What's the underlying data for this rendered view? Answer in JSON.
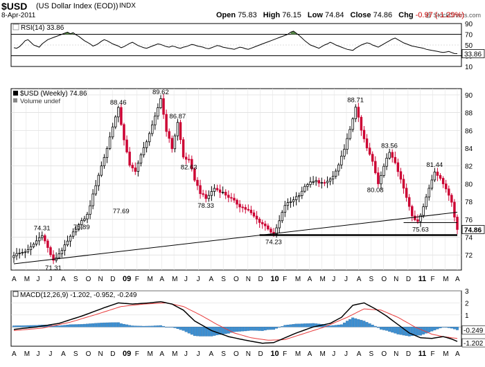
{
  "header": {
    "symbol": "$USD",
    "name": "(US Dollar Index (EOD))",
    "exchange": "INDX",
    "date": "8-Apr-2011",
    "brand": "@ StockCharts.com",
    "open_label": "Open",
    "open": "75.83",
    "high_label": "High",
    "high": "76.15",
    "low_label": "Low",
    "low": "74.84",
    "close_label": "Close",
    "close": "74.86",
    "chg_label": "Chg",
    "chg": "-0.97 (-1.29%)"
  },
  "colors": {
    "up": "#000000",
    "down": "#cc0033",
    "macd_hist": "#3d8fd1",
    "signal": "#e83a3a",
    "rsi_fill": "#5a8a4a"
  },
  "chart_data": [
    {
      "type": "line",
      "title": "RSI(14) 33.86",
      "ylim": [
        10,
        90
      ],
      "y_ticks": [
        10,
        30,
        50,
        70,
        90
      ],
      "reference_lines": [
        30,
        70
      ],
      "last_value": "33.86",
      "x_range": [
        0,
        157
      ],
      "series": [
        {
          "values": [
            45,
            44,
            47,
            52,
            58,
            60,
            55,
            50,
            48,
            46,
            52,
            56,
            60,
            62,
            64,
            66,
            68,
            70,
            72,
            74,
            71,
            73,
            69,
            66,
            62,
            58,
            55,
            52,
            48,
            50,
            53,
            57,
            60,
            58,
            55,
            52,
            50,
            48,
            45,
            47,
            50,
            53,
            55,
            52,
            49,
            47,
            45,
            44,
            46,
            48,
            50,
            52,
            51,
            49,
            47,
            46,
            48,
            47,
            45,
            44,
            46,
            47,
            49,
            51,
            50,
            48,
            47,
            46,
            44,
            43,
            45,
            47,
            49,
            48,
            46,
            45,
            44,
            43,
            42,
            44,
            46,
            45,
            43,
            42,
            44,
            46,
            48,
            50,
            52,
            54,
            56,
            58,
            60,
            62,
            64,
            66,
            68,
            70,
            74,
            76,
            72,
            68,
            63,
            58,
            54,
            50,
            48,
            46,
            44,
            47,
            50,
            52,
            55,
            53,
            50,
            48,
            46,
            44,
            42,
            41,
            40,
            44,
            47,
            50,
            52,
            54,
            53,
            50,
            48,
            46,
            49,
            52,
            55,
            58,
            61,
            63,
            60,
            57,
            54,
            52,
            50,
            48,
            47,
            46,
            45,
            44,
            42,
            41,
            40,
            39,
            38,
            37,
            36,
            37,
            38,
            36,
            34,
            33.86
          ]
        }
      ]
    },
    {
      "type": "candlestick",
      "title": "$USD (Weekly) 74.86",
      "volume_label": "Volume undef",
      "ylim": [
        70.3,
        90.7
      ],
      "y_ticks": [
        72,
        74,
        76,
        78,
        80,
        82,
        84,
        86,
        88,
        90
      ],
      "x_ticks": [
        "A",
        "M",
        "J",
        "J",
        "A",
        "S",
        "O",
        "N",
        "D",
        "09",
        "F",
        "M",
        "A",
        "M",
        "J",
        "J",
        "A",
        "S",
        "O",
        "N",
        "D",
        "10",
        "F",
        "M",
        "A",
        "M",
        "J",
        "J",
        "A",
        "S",
        "O",
        "N",
        "D",
        "11",
        "F",
        "M",
        "A"
      ],
      "x_range": [
        0,
        157
      ],
      "price_waypoints": [
        [
          0,
          72.0
        ],
        [
          5,
          72.5
        ],
        [
          10,
          74.3
        ],
        [
          14,
          71.3
        ],
        [
          18,
          73.0
        ],
        [
          22,
          75.0
        ],
        [
          26,
          76.5
        ],
        [
          30,
          81.0
        ],
        [
          33,
          84.0
        ],
        [
          35,
          86.5
        ],
        [
          37,
          88.46
        ],
        [
          39,
          85.0
        ],
        [
          41,
          82.0
        ],
        [
          43,
          81.5
        ],
        [
          46,
          84.0
        ],
        [
          49,
          86.5
        ],
        [
          50,
          87.5
        ],
        [
          52,
          89.62
        ],
        [
          54,
          86.0
        ],
        [
          56,
          84.0
        ],
        [
          58,
          86.87
        ],
        [
          60,
          83.0
        ],
        [
          62,
          82.63
        ],
        [
          64,
          80.5
        ],
        [
          66,
          79.0
        ],
        [
          68,
          78.33
        ],
        [
          71,
          79.5
        ],
        [
          74,
          79.0
        ],
        [
          77,
          78.3
        ],
        [
          80,
          77.5
        ],
        [
          83,
          77.0
        ],
        [
          86,
          76.0
        ],
        [
          88,
          75.5
        ],
        [
          90,
          75.0
        ],
        [
          92,
          74.23
        ],
        [
          94,
          75.8
        ],
        [
          96,
          77.6
        ],
        [
          98,
          78.0
        ],
        [
          101,
          78.8
        ],
        [
          104,
          80.0
        ],
        [
          107,
          80.3
        ],
        [
          110,
          80.0
        ],
        [
          113,
          80.8
        ],
        [
          115,
          82.0
        ],
        [
          117,
          84.0
        ],
        [
          119,
          86.0
        ],
        [
          121,
          88.71
        ],
        [
          123,
          86.0
        ],
        [
          125,
          84.0
        ],
        [
          127,
          82.5
        ],
        [
          129,
          80.08
        ],
        [
          131,
          82.0
        ],
        [
          133,
          83.56
        ],
        [
          135,
          82.5
        ],
        [
          137,
          80.5
        ],
        [
          139,
          78.5
        ],
        [
          141,
          76.5
        ],
        [
          143,
          75.63
        ],
        [
          145,
          77.5
        ],
        [
          147,
          79.5
        ],
        [
          149,
          81.44
        ],
        [
          151,
          80.5
        ],
        [
          153,
          79.5
        ],
        [
          154,
          78.8
        ],
        [
          155,
          77.8
        ],
        [
          156,
          76.3
        ],
        [
          157,
          74.86
        ]
      ],
      "annotations": [
        {
          "x": 10,
          "y": 74.31,
          "label": "74.31",
          "pos": "above"
        },
        {
          "x": 14,
          "y": 71.31,
          "label": "71.31",
          "pos": "below"
        },
        {
          "x": 24,
          "y": 75.89,
          "label": "75.89",
          "pos": "below"
        },
        {
          "x": 37,
          "y": 88.46,
          "label": "88.46",
          "pos": "above"
        },
        {
          "x": 38,
          "y": 77.69,
          "label": "77.69",
          "pos": "below"
        },
        {
          "x": 52,
          "y": 89.62,
          "label": "89.62",
          "pos": "above"
        },
        {
          "x": 58,
          "y": 86.87,
          "label": "86.87",
          "pos": "above"
        },
        {
          "x": 62,
          "y": 82.63,
          "label": "82.63",
          "pos": "below"
        },
        {
          "x": 68,
          "y": 78.33,
          "label": "78.33",
          "pos": "below"
        },
        {
          "x": 92,
          "y": 74.23,
          "label": "74.23",
          "pos": "below"
        },
        {
          "x": 121,
          "y": 88.71,
          "label": "88.71",
          "pos": "above"
        },
        {
          "x": 128,
          "y": 80.08,
          "label": "80.08",
          "pos": "below"
        },
        {
          "x": 133,
          "y": 83.56,
          "label": "83.56",
          "pos": "above"
        },
        {
          "x": 144,
          "y": 75.63,
          "label": "75.63",
          "pos": "below"
        },
        {
          "x": 149,
          "y": 81.44,
          "label": "81.44",
          "pos": "above"
        }
      ],
      "trendlines": [
        {
          "x1": 0,
          "y1": 71.0,
          "x2": 157,
          "y2": 76.8,
          "width": 1
        },
        {
          "x1": 87,
          "y1": 74.23,
          "x2": 157,
          "y2": 74.23,
          "width": 2.5
        },
        {
          "x1": 138,
          "y1": 75.63,
          "x2": 157,
          "y2": 75.63,
          "width": 1
        }
      ],
      "last_price": "74.86"
    },
    {
      "type": "line",
      "title": "MACD(12,26,9) -1.202, -0.952, -0.249",
      "ylim": [
        -1.6,
        3.0
      ],
      "y_ticks": [
        1,
        2,
        3
      ],
      "last_labels": [
        "-0.249",
        "-1.202"
      ],
      "x_range": [
        0,
        157
      ],
      "macd_waypoints": [
        [
          0,
          -0.2
        ],
        [
          8,
          0.0
        ],
        [
          16,
          0.3
        ],
        [
          24,
          0.9
        ],
        [
          32,
          1.6
        ],
        [
          37,
          2.0
        ],
        [
          42,
          1.9
        ],
        [
          48,
          2.0
        ],
        [
          52,
          2.1
        ],
        [
          56,
          1.9
        ],
        [
          60,
          1.4
        ],
        [
          64,
          0.5
        ],
        [
          70,
          -0.3
        ],
        [
          76,
          -0.8
        ],
        [
          82,
          -1.1
        ],
        [
          88,
          -1.35
        ],
        [
          92,
          -1.3
        ],
        [
          96,
          -0.9
        ],
        [
          100,
          -0.5
        ],
        [
          106,
          0.0
        ],
        [
          112,
          0.3
        ],
        [
          116,
          0.8
        ],
        [
          120,
          1.8
        ],
        [
          124,
          2.0
        ],
        [
          128,
          1.5
        ],
        [
          132,
          0.9
        ],
        [
          136,
          0.2
        ],
        [
          140,
          -0.5
        ],
        [
          144,
          -0.9
        ],
        [
          148,
          -0.95
        ],
        [
          152,
          -0.8
        ],
        [
          155,
          -1.0
        ],
        [
          157,
          -1.202
        ]
      ],
      "signal_waypoints": [
        [
          0,
          -0.3
        ],
        [
          10,
          -0.1
        ],
        [
          20,
          0.4
        ],
        [
          30,
          1.1
        ],
        [
          38,
          1.7
        ],
        [
          46,
          1.9
        ],
        [
          54,
          2.0
        ],
        [
          60,
          1.7
        ],
        [
          66,
          1.0
        ],
        [
          72,
          0.2
        ],
        [
          78,
          -0.5
        ],
        [
          84,
          -0.9
        ],
        [
          90,
          -1.1
        ],
        [
          96,
          -1.05
        ],
        [
          102,
          -0.6
        ],
        [
          110,
          0.0
        ],
        [
          118,
          0.8
        ],
        [
          124,
          1.5
        ],
        [
          130,
          1.4
        ],
        [
          136,
          0.8
        ],
        [
          142,
          0.0
        ],
        [
          148,
          -0.6
        ],
        [
          152,
          -0.8
        ],
        [
          157,
          -0.952
        ]
      ]
    }
  ]
}
